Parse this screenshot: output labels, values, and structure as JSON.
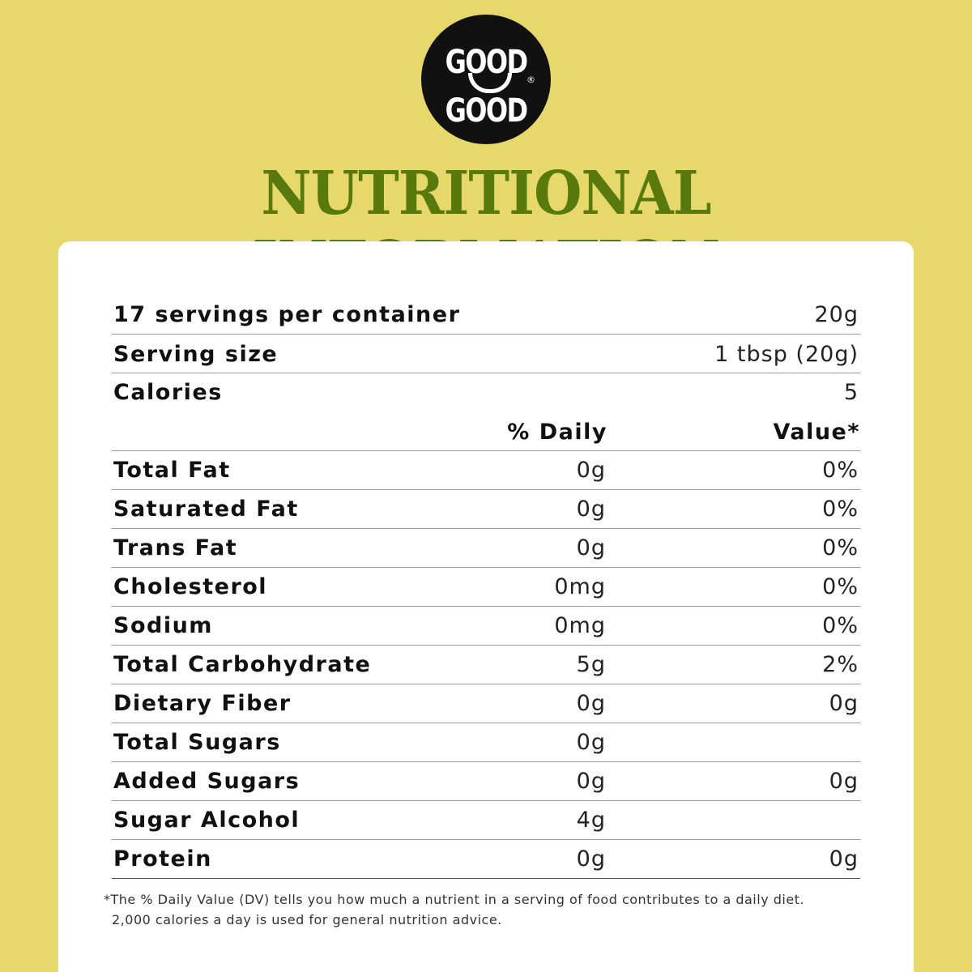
{
  "logo": {
    "top": "GOOD",
    "bottom": "GOOD",
    "mark": "®"
  },
  "title": "NUTRITIONAL INFORMATION",
  "summary": [
    {
      "label": "17 servings per container",
      "value": "20g"
    },
    {
      "label": "Serving size",
      "value": "1 tbsp (20g)"
    },
    {
      "label": "Calories",
      "value": "5"
    }
  ],
  "columns": [
    "% Daily",
    "Value*"
  ],
  "nutrients": [
    {
      "name": "Total Fat",
      "amount": "0g",
      "dv": "0%"
    },
    {
      "name": "Saturated Fat",
      "amount": "0g",
      "dv": "0%"
    },
    {
      "name": "Trans Fat",
      "amount": "0g",
      "dv": "0%"
    },
    {
      "name": "Cholesterol",
      "amount": "0mg",
      "dv": "0%"
    },
    {
      "name": "Sodium",
      "amount": "0mg",
      "dv": "0%"
    },
    {
      "name": "Total Carbohydrate",
      "amount": "5g",
      "dv": "2%"
    },
    {
      "name": "Dietary Fiber",
      "amount": "0g",
      "dv": "0g"
    },
    {
      "name": "Total Sugars",
      "amount": "0g"
    },
    {
      "name": "Added Sugars",
      "amount": "0g",
      "dv": "0g"
    },
    {
      "name": "Sugar Alcohol",
      "amount": "4g"
    },
    {
      "name": "Protein",
      "amount": "0g",
      "dv": "0g"
    }
  ],
  "footnote": [
    "*The % Daily Value (DV) tells you how much a nutrient in a serving of food contributes to a daily diet.",
    "2,000 calories a day is used for general nutrition advice."
  ]
}
